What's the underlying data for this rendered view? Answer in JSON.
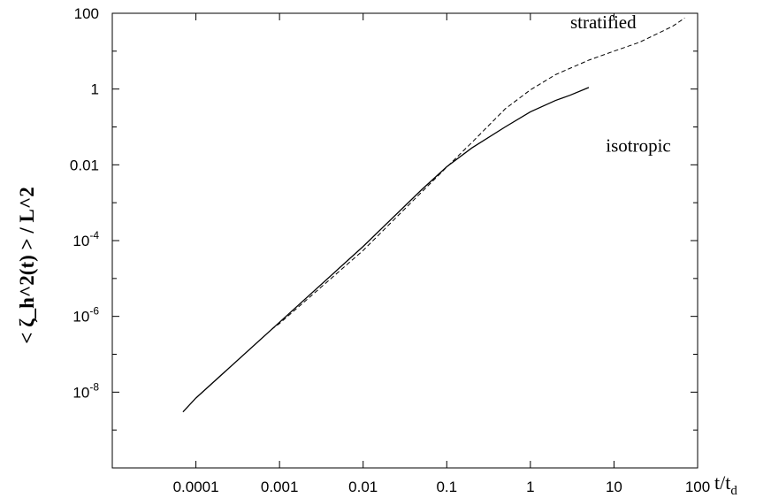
{
  "chart_data": {
    "type": "line",
    "xscale": "log",
    "yscale": "log",
    "xlim": [
      1e-05,
      100
    ],
    "ylim": [
      1e-10,
      100
    ],
    "grid": false,
    "xlabel": "t/t_d",
    "xlabel_main": "t/t",
    "xlabel_sub": "d",
    "ylabel": "< ζ_h^2(t) > / L^2",
    "x_ticks": [
      {
        "value": 0.0001,
        "label": "0.0001"
      },
      {
        "value": 0.001,
        "label": "0.001"
      },
      {
        "value": 0.01,
        "label": "0.01"
      },
      {
        "value": 0.1,
        "label": "0.1"
      },
      {
        "value": 1,
        "label": "1"
      },
      {
        "value": 10,
        "label": "10"
      },
      {
        "value": 100,
        "label": "100"
      }
    ],
    "y_ticks": [
      {
        "value": 100,
        "base": "100",
        "exp": ""
      },
      {
        "value": 1,
        "base": "1",
        "exp": ""
      },
      {
        "value": 0.01,
        "base": "0.01",
        "exp": ""
      },
      {
        "value": 0.0001,
        "base": "10",
        "exp": "-4"
      },
      {
        "value": 1e-06,
        "base": "10",
        "exp": "-6"
      },
      {
        "value": 1e-08,
        "base": "10",
        "exp": "-8"
      }
    ],
    "y_minor_ticks": [
      10,
      0.1,
      0.001,
      1e-05,
      1e-07,
      1e-09
    ],
    "series": [
      {
        "name": "isotropic",
        "style": "solid",
        "x": [
          7e-05,
          0.0001,
          0.001,
          0.01,
          0.05,
          0.1,
          0.2,
          0.5,
          1,
          2,
          3,
          5
        ],
        "y": [
          3e-09,
          7e-09,
          7e-07,
          7e-05,
          0.0022,
          0.0089,
          0.028,
          0.1,
          0.25,
          0.5,
          0.69,
          1.1
        ]
      },
      {
        "name": "stratified",
        "style": "dashed",
        "x": [
          0.0008,
          0.001,
          0.01,
          0.05,
          0.1,
          0.2,
          0.5,
          1,
          2,
          5,
          10,
          20,
          50,
          70
        ],
        "y": [
          4.5e-07,
          6.5e-07,
          5.5e-05,
          0.0019,
          0.0087,
          0.039,
          0.3,
          0.95,
          2.4,
          5.8,
          10,
          17,
          45,
          75
        ]
      }
    ],
    "annotations": [
      {
        "text": "stratified",
        "x": 3,
        "y": 40
      },
      {
        "text": "isotropic",
        "x": 8,
        "y": 0.022
      }
    ]
  }
}
